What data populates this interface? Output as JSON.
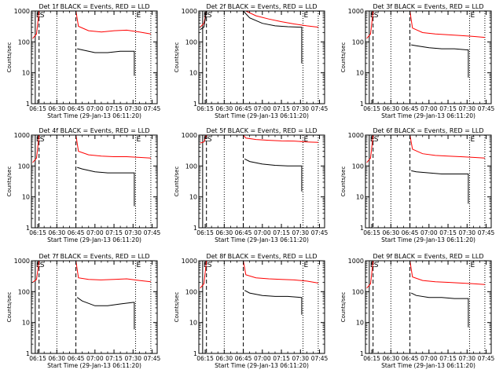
{
  "chart_data": [
    {
      "type": "line",
      "title": "Det 1f BLACK = Events, RED = LLD",
      "xlabel": "Start Time (29-Jan-13 06:11:20)",
      "ylabel": "Counts/sec",
      "yscale": "log",
      "ylim": [
        1,
        1000
      ],
      "xlim": [
        "06:10",
        "07:49"
      ],
      "xticks": [
        "06:15",
        "06:30",
        "06:45",
        "07:00",
        "07:15",
        "07:30",
        "07:45"
      ],
      "yticks": [
        "1",
        "10",
        "100",
        "1000"
      ],
      "markers": [
        {
          "label": "E",
          "time": "06:13",
          "style": "solid"
        },
        {
          "label": "S",
          "time": "06:16",
          "style": "dashed"
        },
        {
          "label": "",
          "time": "06:30",
          "style": "dotted"
        },
        {
          "label": "",
          "time": "06:45",
          "style": "dashed"
        },
        {
          "label": "E",
          "time": "07:32",
          "style": "dotted"
        },
        {
          "label": "",
          "time": "07:44",
          "style": "dotted"
        }
      ],
      "series": [
        {
          "color": "#ff0000",
          "x": [
            "06:11",
            "06:14",
            "06:16",
            "06:45",
            "06:47",
            "06:55",
            "07:05",
            "07:15",
            "07:25",
            "07:35",
            "07:44"
          ],
          "y": [
            130,
            180,
            1000,
            1000,
            320,
            230,
            210,
            230,
            240,
            210,
            180
          ]
        },
        {
          "color": "#000000",
          "x": [
            "06:46",
            "06:50",
            "07:00",
            "07:10",
            "07:20",
            "07:30",
            "07:31",
            "07:31"
          ],
          "y": [
            60,
            55,
            45,
            45,
            50,
            50,
            50,
            8
          ]
        }
      ]
    },
    {
      "type": "line",
      "title": "Det 2f BLACK = Events, RED = LLD",
      "xlabel": "Start Time (29-Jan-13 06:11:20)",
      "ylabel": "Counts/sec",
      "yscale": "log",
      "ylim": [
        1,
        1000
      ],
      "xlim": [
        "06:10",
        "07:49"
      ],
      "xticks": [
        "06:15",
        "06:30",
        "06:45",
        "07:00",
        "07:15",
        "07:30",
        "07:45"
      ],
      "yticks": [
        "1",
        "10",
        "100",
        "1000"
      ],
      "markers": [
        {
          "label": "E",
          "time": "06:13",
          "style": "solid"
        },
        {
          "label": "S",
          "time": "06:16",
          "style": "dashed"
        },
        {
          "label": "",
          "time": "06:30",
          "style": "dotted"
        },
        {
          "label": "",
          "time": "06:45",
          "style": "dashed"
        },
        {
          "label": "E",
          "time": "07:32",
          "style": "dotted"
        },
        {
          "label": "",
          "time": "07:44",
          "style": "dotted"
        }
      ],
      "series": [
        {
          "color": "#ff0000",
          "x": [
            "06:11",
            "06:14",
            "06:16",
            "06:45",
            "06:47",
            "06:55",
            "07:05",
            "07:15",
            "07:25",
            "07:35",
            "07:44"
          ],
          "y": [
            300,
            400,
            1000,
            1000,
            1200,
            700,
            550,
            450,
            380,
            330,
            300
          ]
        },
        {
          "color": "#000000",
          "x": [
            "06:11",
            "06:14",
            "06:16",
            "06:45",
            "06:50",
            "07:00",
            "07:10",
            "07:20",
            "07:30",
            "07:31",
            "07:31"
          ],
          "y": [
            250,
            300,
            1000,
            1000,
            600,
            400,
            330,
            310,
            300,
            300,
            20
          ]
        }
      ]
    },
    {
      "type": "line",
      "title": "Det 3f BLACK = Events, RED = LLD",
      "xlabel": "Start Time (29-Jan-13 06:11:20)",
      "ylabel": "Counts/sec",
      "yscale": "log",
      "ylim": [
        1,
        1000
      ],
      "xlim": [
        "06:10",
        "07:49"
      ],
      "xticks": [
        "06:15",
        "06:30",
        "06:45",
        "07:00",
        "07:15",
        "07:30",
        "07:45"
      ],
      "yticks": [
        "1",
        "10",
        "100",
        "1000"
      ],
      "markers": [
        {
          "label": "E",
          "time": "06:13",
          "style": "solid"
        },
        {
          "label": "S",
          "time": "06:16",
          "style": "dashed"
        },
        {
          "label": "",
          "time": "06:30",
          "style": "dotted"
        },
        {
          "label": "",
          "time": "06:45",
          "style": "dashed"
        },
        {
          "label": "E",
          "time": "07:32",
          "style": "dotted"
        },
        {
          "label": "",
          "time": "07:44",
          "style": "dotted"
        }
      ],
      "series": [
        {
          "color": "#ff0000",
          "x": [
            "06:11",
            "06:14",
            "06:16",
            "06:45",
            "06:47",
            "06:55",
            "07:05",
            "07:15",
            "07:25",
            "07:35",
            "07:44"
          ],
          "y": [
            130,
            180,
            1000,
            1000,
            280,
            200,
            180,
            170,
            160,
            150,
            140
          ]
        },
        {
          "color": "#000000",
          "x": [
            "06:46",
            "06:50",
            "07:00",
            "07:10",
            "07:20",
            "07:30",
            "07:31",
            "07:31"
          ],
          "y": [
            80,
            75,
            65,
            60,
            60,
            55,
            55,
            7
          ]
        }
      ]
    },
    {
      "type": "line",
      "title": "Det 4f BLACK = Events, RED = LLD",
      "xlabel": "Start Time (29-Jan-13 06:11:20)",
      "ylabel": "Counts/sec",
      "yscale": "log",
      "ylim": [
        1,
        1000
      ],
      "xlim": [
        "06:10",
        "07:49"
      ],
      "xticks": [
        "06:15",
        "06:30",
        "06:45",
        "07:00",
        "07:15",
        "07:30",
        "07:45"
      ],
      "yticks": [
        "1",
        "10",
        "100",
        "1000"
      ],
      "markers": [
        {
          "label": "E",
          "time": "06:13",
          "style": "solid"
        },
        {
          "label": "S",
          "time": "06:16",
          "style": "dashed"
        },
        {
          "label": "",
          "time": "06:30",
          "style": "dotted"
        },
        {
          "label": "",
          "time": "06:45",
          "style": "dashed"
        },
        {
          "label": "E",
          "time": "07:32",
          "style": "dotted"
        },
        {
          "label": "",
          "time": "07:44",
          "style": "dotted"
        }
      ],
      "series": [
        {
          "color": "#ff0000",
          "x": [
            "06:11",
            "06:14",
            "06:16",
            "06:45",
            "06:47",
            "06:55",
            "07:05",
            "07:15",
            "07:25",
            "07:35",
            "07:44"
          ],
          "y": [
            130,
            180,
            1000,
            1000,
            300,
            230,
            210,
            200,
            200,
            190,
            180
          ]
        },
        {
          "color": "#000000",
          "x": [
            "06:46",
            "06:50",
            "07:00",
            "07:10",
            "07:20",
            "07:30",
            "07:31",
            "07:31"
          ],
          "y": [
            90,
            80,
            65,
            60,
            60,
            60,
            60,
            5
          ]
        }
      ]
    },
    {
      "type": "line",
      "title": "Det 5f BLACK = Events, RED = LLD",
      "xlabel": "Start Time (29-Jan-13 06:11:20)",
      "ylabel": "Counts/sec",
      "yscale": "log",
      "ylim": [
        1,
        1000
      ],
      "xlim": [
        "06:10",
        "07:49"
      ],
      "xticks": [
        "06:15",
        "06:30",
        "06:45",
        "07:00",
        "07:15",
        "07:30",
        "07:45"
      ],
      "yticks": [
        "1",
        "10",
        "100",
        "1000"
      ],
      "markers": [
        {
          "label": "E",
          "time": "06:13",
          "style": "solid"
        },
        {
          "label": "S",
          "time": "06:16",
          "style": "dashed"
        },
        {
          "label": "",
          "time": "06:30",
          "style": "dotted"
        },
        {
          "label": "",
          "time": "06:45",
          "style": "dashed"
        },
        {
          "label": "E",
          "time": "07:32",
          "style": "dotted"
        },
        {
          "label": "",
          "time": "07:44",
          "style": "dotted"
        }
      ],
      "series": [
        {
          "color": "#ff0000",
          "x": [
            "06:11",
            "06:14",
            "06:16",
            "06:45",
            "06:47",
            "06:55",
            "07:05",
            "07:15",
            "07:25",
            "07:35",
            "07:44"
          ],
          "y": [
            550,
            600,
            1000,
            1000,
            800,
            720,
            680,
            650,
            640,
            600,
            580
          ]
        },
        {
          "color": "#000000",
          "x": [
            "06:46",
            "06:50",
            "07:00",
            "07:10",
            "07:20",
            "07:30",
            "07:31",
            "07:31"
          ],
          "y": [
            170,
            140,
            115,
            105,
            100,
            100,
            100,
            15
          ]
        }
      ]
    },
    {
      "type": "line",
      "title": "Det 6f BLACK = Events, RED = LLD",
      "xlabel": "Start Time (29-Jan-13 06:11:20)",
      "ylabel": "Counts/sec",
      "yscale": "log",
      "ylim": [
        1,
        1000
      ],
      "xlim": [
        "06:10",
        "07:49"
      ],
      "xticks": [
        "06:15",
        "06:30",
        "06:45",
        "07:00",
        "07:15",
        "07:30",
        "07:45"
      ],
      "yticks": [
        "1",
        "10",
        "100",
        "1000"
      ],
      "markers": [
        {
          "label": "E",
          "time": "06:13",
          "style": "solid"
        },
        {
          "label": "S",
          "time": "06:16",
          "style": "dashed"
        },
        {
          "label": "",
          "time": "06:30",
          "style": "dotted"
        },
        {
          "label": "",
          "time": "06:45",
          "style": "dashed"
        },
        {
          "label": "E",
          "time": "07:32",
          "style": "dotted"
        },
        {
          "label": "",
          "time": "07:44",
          "style": "dotted"
        }
      ],
      "series": [
        {
          "color": "#ff0000",
          "x": [
            "06:11",
            "06:14",
            "06:16",
            "06:45",
            "06:47",
            "06:55",
            "07:05",
            "07:15",
            "07:25",
            "07:35",
            "07:44"
          ],
          "y": [
            130,
            180,
            1000,
            1000,
            350,
            250,
            220,
            210,
            200,
            190,
            180
          ]
        },
        {
          "color": "#000000",
          "x": [
            "06:46",
            "06:50",
            "07:00",
            "07:10",
            "07:20",
            "07:30",
            "07:31",
            "07:31"
          ],
          "y": [
            70,
            65,
            60,
            55,
            55,
            55,
            55,
            6
          ]
        }
      ]
    },
    {
      "type": "line",
      "title": "Det 7f BLACK = Events, RED = LLD",
      "xlabel": "Start Time (29-Jan-13 06:11:20)",
      "ylabel": "Counts/sec",
      "yscale": "log",
      "ylim": [
        1,
        1000
      ],
      "xlim": [
        "06:10",
        "07:49"
      ],
      "xticks": [
        "06:15",
        "06:30",
        "06:45",
        "07:00",
        "07:15",
        "07:30",
        "07:45"
      ],
      "yticks": [
        "1",
        "10",
        "100",
        "1000"
      ],
      "markers": [
        {
          "label": "E",
          "time": "06:13",
          "style": "solid"
        },
        {
          "label": "S",
          "time": "06:16",
          "style": "dashed"
        },
        {
          "label": "",
          "time": "06:30",
          "style": "dotted"
        },
        {
          "label": "",
          "time": "06:45",
          "style": "dashed"
        },
        {
          "label": "E",
          "time": "07:32",
          "style": "dotted"
        },
        {
          "label": "",
          "time": "07:44",
          "style": "dotted"
        }
      ],
      "series": [
        {
          "color": "#ff0000",
          "x": [
            "06:11",
            "06:14",
            "06:16",
            "06:45",
            "06:47",
            "06:55",
            "07:05",
            "07:15",
            "07:25",
            "07:35",
            "07:44"
          ],
          "y": [
            200,
            250,
            1000,
            1000,
            280,
            250,
            240,
            250,
            260,
            230,
            210
          ]
        },
        {
          "color": "#000000",
          "x": [
            "06:46",
            "06:50",
            "07:00",
            "07:10",
            "07:20",
            "07:30",
            "07:31",
            "07:31"
          ],
          "y": [
            65,
            50,
            35,
            35,
            40,
            45,
            45,
            6
          ]
        }
      ]
    },
    {
      "type": "line",
      "title": "Det 8f BLACK = Events, RED = LLD",
      "xlabel": "Start Time (29-Jan-13 06:11:20)",
      "ylabel": "Counts/sec",
      "yscale": "log",
      "ylim": [
        1,
        1000
      ],
      "xlim": [
        "06:10",
        "07:49"
      ],
      "xticks": [
        "06:15",
        "06:30",
        "06:45",
        "07:00",
        "07:15",
        "07:30",
        "07:45"
      ],
      "yticks": [
        "1",
        "10",
        "100",
        "1000"
      ],
      "markers": [
        {
          "label": "E",
          "time": "06:13",
          "style": "solid"
        },
        {
          "label": "S",
          "time": "06:16",
          "style": "dashed"
        },
        {
          "label": "",
          "time": "06:30",
          "style": "dotted"
        },
        {
          "label": "",
          "time": "06:45",
          "style": "dashed"
        },
        {
          "label": "E",
          "time": "07:32",
          "style": "dotted"
        },
        {
          "label": "",
          "time": "07:44",
          "style": "dotted"
        }
      ],
      "series": [
        {
          "color": "#ff0000",
          "x": [
            "06:11",
            "06:14",
            "06:16",
            "06:45",
            "06:47",
            "06:55",
            "07:05",
            "07:15",
            "07:25",
            "07:35",
            "07:44"
          ],
          "y": [
            130,
            180,
            1000,
            1000,
            350,
            280,
            260,
            250,
            240,
            220,
            190
          ]
        },
        {
          "color": "#000000",
          "x": [
            "06:46",
            "06:50",
            "07:00",
            "07:10",
            "07:20",
            "07:30",
            "07:31",
            "07:31"
          ],
          "y": [
            110,
            90,
            75,
            70,
            70,
            65,
            65,
            18
          ]
        }
      ]
    },
    {
      "type": "line",
      "title": "Det 9f BLACK = Events, RED = LLD",
      "xlabel": "Start Time (29-Jan-13 06:11:20)",
      "ylabel": "Counts/sec",
      "yscale": "log",
      "ylim": [
        1,
        1000
      ],
      "xlim": [
        "06:10",
        "07:49"
      ],
      "xticks": [
        "06:15",
        "06:30",
        "06:45",
        "07:00",
        "07:15",
        "07:30",
        "07:45"
      ],
      "yticks": [
        "1",
        "10",
        "100",
        "1000"
      ],
      "markers": [
        {
          "label": "E",
          "time": "06:13",
          "style": "solid"
        },
        {
          "label": "S",
          "time": "06:16",
          "style": "dashed"
        },
        {
          "label": "",
          "time": "06:30",
          "style": "dotted"
        },
        {
          "label": "",
          "time": "06:45",
          "style": "dashed"
        },
        {
          "label": "E",
          "time": "07:32",
          "style": "dotted"
        },
        {
          "label": "",
          "time": "07:44",
          "style": "dotted"
        }
      ],
      "series": [
        {
          "color": "#ff0000",
          "x": [
            "06:11",
            "06:14",
            "06:16",
            "06:45",
            "06:47",
            "06:55",
            "07:05",
            "07:15",
            "07:25",
            "07:35",
            "07:44"
          ],
          "y": [
            130,
            180,
            1000,
            1000,
            300,
            230,
            210,
            200,
            190,
            180,
            170
          ]
        },
        {
          "color": "#000000",
          "x": [
            "06:46",
            "06:50",
            "07:00",
            "07:10",
            "07:20",
            "07:30",
            "07:31",
            "07:31"
          ],
          "y": [
            90,
            75,
            65,
            65,
            60,
            60,
            60,
            7
          ]
        }
      ]
    }
  ]
}
